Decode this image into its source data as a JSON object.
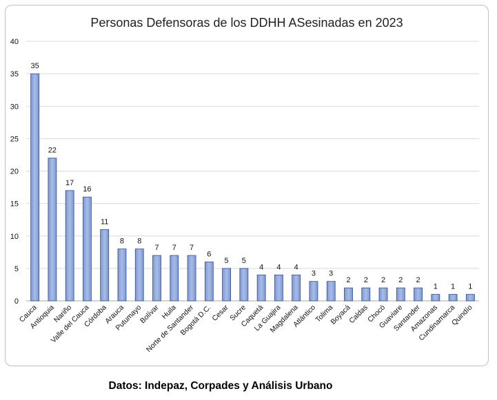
{
  "chart_data": {
    "type": "bar",
    "title": "Personas Defensoras de los DDHH ASesinadas en 2023",
    "xlabel": "",
    "ylabel": "",
    "categories": [
      "Cauca",
      "Antioquia",
      "Nariño",
      "Valle del Cauca",
      "Córdoba",
      "Arauca",
      "Putumayo",
      "Bolívar",
      "Huila",
      "Norte de Santander",
      "Bogotá D.C.",
      "Cesar",
      "Sucre",
      "Caquetá",
      "La Guajira",
      "Magdalena",
      "Atlántico",
      "Tolima",
      "Boyacá",
      "Caldas",
      "Chocó",
      "Guaviare",
      "Santander",
      "Amazonas",
      "Cundinamarca",
      "Quindío"
    ],
    "values": [
      35,
      22,
      17,
      16,
      11,
      8,
      8,
      7,
      7,
      7,
      6,
      5,
      5,
      4,
      4,
      4,
      3,
      3,
      2,
      2,
      2,
      2,
      2,
      1,
      1,
      1
    ],
    "ylim": [
      0,
      40
    ],
    "yticks": [
      0,
      5,
      10,
      15,
      20,
      25,
      30,
      35,
      40
    ],
    "grid": true,
    "legend": "none",
    "bar_color": "#8fa7dc",
    "bar_edge_color": "#2f4f8f",
    "grid_color": "#d9d9d9"
  },
  "footer": {
    "source": "Datos: Indepaz, Corpades y Análisis Urbano"
  }
}
